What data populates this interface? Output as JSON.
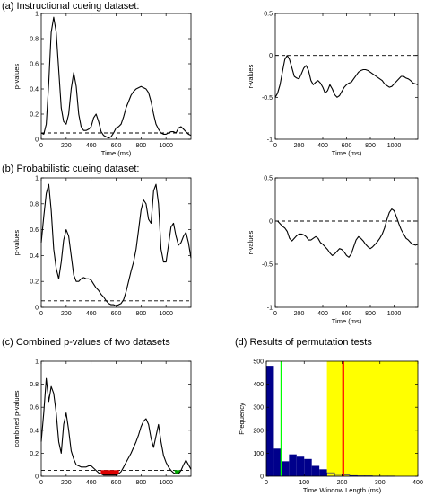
{
  "panel_titles": {
    "a": "(a)  Instructional cueing dataset:",
    "b": "(b)  Probabilistic cueing dataset:",
    "c": "(c)  Combined p-values of two datasets",
    "d": "(d)  Results of permutation tests"
  },
  "chart_data": [
    {
      "id": "a-left",
      "type": "line",
      "xlabel": "Time (ms)",
      "ylabel": "p-values",
      "xlim": [
        0,
        1200
      ],
      "ylim": [
        0,
        1
      ],
      "xticks": [
        0,
        200,
        400,
        600,
        800,
        1000
      ],
      "yticks": [
        0,
        0.2,
        0.4,
        0.6,
        0.8,
        1
      ],
      "ytick_labels": [
        "0",
        "0.2",
        "0.4",
        "0.6",
        "0.8",
        "1"
      ],
      "threshold": 0.05,
      "series": [
        {
          "x": [
            0,
            20,
            40,
            60,
            80,
            100,
            120,
            140,
            160,
            180,
            200,
            220,
            240,
            260,
            280,
            300,
            320,
            340,
            360,
            380,
            400,
            420,
            440,
            460,
            480,
            500,
            520,
            540,
            560,
            580,
            600,
            620,
            640,
            660,
            680,
            700,
            720,
            740,
            760,
            780,
            800,
            820,
            840,
            860,
            880,
            900,
            920,
            940,
            960,
            980,
            1000,
            1020,
            1040,
            1060,
            1080,
            1100,
            1120,
            1140,
            1160,
            1180,
            1200
          ],
          "y": [
            0.05,
            0.04,
            0.12,
            0.45,
            0.85,
            0.97,
            0.85,
            0.55,
            0.25,
            0.14,
            0.12,
            0.2,
            0.4,
            0.53,
            0.42,
            0.2,
            0.1,
            0.07,
            0.07,
            0.08,
            0.1,
            0.17,
            0.2,
            0.14,
            0.06,
            0.03,
            0.02,
            0.01,
            0.02,
            0.05,
            0.09,
            0.1,
            0.12,
            0.18,
            0.25,
            0.3,
            0.35,
            0.38,
            0.4,
            0.41,
            0.42,
            0.41,
            0.4,
            0.37,
            0.3,
            0.2,
            0.12,
            0.08,
            0.05,
            0.04,
            0.04,
            0.05,
            0.06,
            0.06,
            0.05,
            0.09,
            0.1,
            0.08,
            0.06,
            0.04,
            0.03
          ]
        }
      ]
    },
    {
      "id": "a-right",
      "type": "line",
      "xlabel": "Time (ms)",
      "ylabel": "r-values",
      "xlim": [
        0,
        1200
      ],
      "ylim": [
        -1,
        0.5
      ],
      "xticks": [
        0,
        200,
        400,
        600,
        800,
        1000
      ],
      "yticks": [
        -1,
        -0.5,
        0,
        0.5
      ],
      "ytick_labels": [
        "-1",
        "-0.5",
        "0",
        "0.5"
      ],
      "threshold": 0,
      "series": [
        {
          "x": [
            0,
            20,
            40,
            60,
            80,
            100,
            120,
            140,
            160,
            180,
            200,
            220,
            240,
            260,
            280,
            300,
            320,
            340,
            360,
            380,
            400,
            420,
            440,
            460,
            480,
            500,
            520,
            540,
            560,
            580,
            600,
            620,
            640,
            660,
            680,
            700,
            720,
            740,
            760,
            780,
            800,
            820,
            840,
            860,
            880,
            900,
            920,
            940,
            960,
            980,
            1000,
            1020,
            1040,
            1060,
            1080,
            1100,
            1120,
            1140,
            1160,
            1180,
            1200
          ],
          "y": [
            -0.5,
            -0.45,
            -0.35,
            -0.2,
            -0.05,
            0.0,
            -0.05,
            -0.15,
            -0.25,
            -0.27,
            -0.28,
            -0.22,
            -0.15,
            -0.12,
            -0.18,
            -0.3,
            -0.35,
            -0.32,
            -0.3,
            -0.33,
            -0.38,
            -0.45,
            -0.42,
            -0.35,
            -0.4,
            -0.47,
            -0.5,
            -0.48,
            -0.43,
            -0.38,
            -0.35,
            -0.33,
            -0.32,
            -0.28,
            -0.24,
            -0.2,
            -0.18,
            -0.17,
            -0.17,
            -0.18,
            -0.2,
            -0.22,
            -0.24,
            -0.26,
            -0.28,
            -0.3,
            -0.34,
            -0.36,
            -0.38,
            -0.37,
            -0.34,
            -0.31,
            -0.28,
            -0.25,
            -0.25,
            -0.27,
            -0.28,
            -0.3,
            -0.33,
            -0.34,
            -0.35
          ]
        }
      ]
    },
    {
      "id": "b-left",
      "type": "line",
      "xlabel": "",
      "ylabel": "p-values",
      "xlim": [
        0,
        1200
      ],
      "ylim": [
        0,
        1
      ],
      "xticks": [
        0,
        200,
        400,
        600,
        800,
        1000
      ],
      "yticks": [
        0,
        0.2,
        0.4,
        0.6,
        0.8,
        1
      ],
      "ytick_labels": [
        "0",
        "0.2",
        "0.4",
        "0.6",
        "0.8",
        "1"
      ],
      "threshold": 0.05,
      "series": [
        {
          "x": [
            0,
            20,
            40,
            60,
            80,
            100,
            120,
            140,
            160,
            180,
            200,
            220,
            240,
            260,
            280,
            300,
            320,
            340,
            360,
            380,
            400,
            420,
            440,
            460,
            480,
            500,
            520,
            540,
            560,
            580,
            600,
            620,
            640,
            660,
            680,
            700,
            720,
            740,
            760,
            780,
            800,
            820,
            840,
            860,
            880,
            900,
            920,
            940,
            960,
            980,
            1000,
            1020,
            1040,
            1060,
            1080,
            1100,
            1120,
            1140,
            1160,
            1180,
            1200
          ],
          "y": [
            0.5,
            0.7,
            0.88,
            0.95,
            0.75,
            0.45,
            0.3,
            0.22,
            0.35,
            0.52,
            0.6,
            0.55,
            0.4,
            0.25,
            0.2,
            0.2,
            0.22,
            0.23,
            0.22,
            0.22,
            0.21,
            0.18,
            0.15,
            0.13,
            0.1,
            0.08,
            0.05,
            0.03,
            0.02,
            0.02,
            0.01,
            0.02,
            0.03,
            0.06,
            0.12,
            0.2,
            0.28,
            0.35,
            0.45,
            0.6,
            0.75,
            0.83,
            0.8,
            0.68,
            0.65,
            0.9,
            0.95,
            0.8,
            0.45,
            0.35,
            0.35,
            0.48,
            0.62,
            0.65,
            0.55,
            0.48,
            0.5,
            0.55,
            0.58,
            0.5,
            0.38
          ]
        }
      ]
    },
    {
      "id": "b-right",
      "type": "line",
      "xlabel": "Time (ms)",
      "ylabel": "r-values",
      "xlim": [
        0,
        1200
      ],
      "ylim": [
        -1,
        0.5
      ],
      "xticks": [
        0,
        200,
        400,
        600,
        800,
        1000
      ],
      "yticks": [
        -1,
        -0.5,
        0,
        0.5
      ],
      "ytick_labels": [
        "-1",
        "-0.5",
        "0",
        "0.5"
      ],
      "threshold": 0,
      "series": [
        {
          "x": [
            0,
            20,
            40,
            60,
            80,
            100,
            120,
            140,
            160,
            180,
            200,
            220,
            240,
            260,
            280,
            300,
            320,
            340,
            360,
            380,
            400,
            420,
            440,
            460,
            480,
            500,
            520,
            540,
            560,
            580,
            600,
            620,
            640,
            660,
            680,
            700,
            720,
            740,
            760,
            780,
            800,
            820,
            840,
            860,
            880,
            900,
            920,
            940,
            960,
            980,
            1000,
            1020,
            1040,
            1060,
            1080,
            1100,
            1120,
            1140,
            1160,
            1180,
            1200
          ],
          "y": [
            0.0,
            0.0,
            -0.03,
            -0.06,
            -0.08,
            -0.12,
            -0.2,
            -0.23,
            -0.2,
            -0.17,
            -0.15,
            -0.15,
            -0.16,
            -0.18,
            -0.22,
            -0.22,
            -0.2,
            -0.18,
            -0.2,
            -0.25,
            -0.27,
            -0.3,
            -0.33,
            -0.37,
            -0.4,
            -0.38,
            -0.35,
            -0.32,
            -0.33,
            -0.36,
            -0.4,
            -0.42,
            -0.38,
            -0.3,
            -0.22,
            -0.18,
            -0.2,
            -0.23,
            -0.27,
            -0.3,
            -0.32,
            -0.3,
            -0.27,
            -0.24,
            -0.2,
            -0.15,
            -0.08,
            0.02,
            0.1,
            0.14,
            0.12,
            0.05,
            -0.03,
            -0.1,
            -0.15,
            -0.2,
            -0.22,
            -0.25,
            -0.27,
            -0.28,
            -0.27
          ]
        }
      ]
    },
    {
      "id": "c-left",
      "type": "line",
      "xlabel": "",
      "ylabel": "combined p-values",
      "xlim": [
        0,
        1200
      ],
      "ylim": [
        0,
        1
      ],
      "xticks": [
        0,
        200,
        400,
        600,
        800,
        1000
      ],
      "yticks": [
        0,
        0.2,
        0.4,
        0.6,
        0.8,
        1
      ],
      "ytick_labels": [
        "0",
        "0.2",
        "0.4",
        "0.6",
        "0.8",
        "1"
      ],
      "threshold": 0.05,
      "highlights": [
        {
          "from": 480,
          "to": 620,
          "color": "#dd0000"
        },
        {
          "from": 1070,
          "to": 1110,
          "color": "#00aa00"
        }
      ],
      "series": [
        {
          "x": [
            0,
            20,
            40,
            60,
            80,
            100,
            120,
            140,
            160,
            180,
            200,
            220,
            240,
            260,
            280,
            300,
            320,
            340,
            360,
            380,
            400,
            420,
            440,
            460,
            480,
            500,
            520,
            540,
            560,
            580,
            600,
            620,
            640,
            660,
            680,
            700,
            720,
            740,
            760,
            780,
            800,
            820,
            840,
            860,
            880,
            900,
            920,
            940,
            960,
            980,
            1000,
            1020,
            1040,
            1060,
            1080,
            1100,
            1120,
            1140,
            1160,
            1180,
            1200
          ],
          "y": [
            0.3,
            0.55,
            0.85,
            0.65,
            0.78,
            0.72,
            0.55,
            0.3,
            0.2,
            0.45,
            0.55,
            0.4,
            0.22,
            0.15,
            0.1,
            0.09,
            0.08,
            0.08,
            0.08,
            0.09,
            0.09,
            0.07,
            0.05,
            0.03,
            0.02,
            0.01,
            0.01,
            0.01,
            0.01,
            0.01,
            0.01,
            0.02,
            0.04,
            0.08,
            0.12,
            0.16,
            0.2,
            0.25,
            0.3,
            0.36,
            0.43,
            0.48,
            0.5,
            0.45,
            0.33,
            0.25,
            0.35,
            0.45,
            0.3,
            0.18,
            0.12,
            0.08,
            0.05,
            0.03,
            0.02,
            0.02,
            0.05,
            0.1,
            0.14,
            0.1,
            0.06
          ]
        }
      ]
    },
    {
      "id": "d-right",
      "type": "bar",
      "xlabel": "Time Window Length (ms)",
      "ylabel": "Frequency",
      "xlim": [
        0,
        400
      ],
      "ylim": [
        0,
        500
      ],
      "xticks": [
        0,
        100,
        200,
        300,
        400
      ],
      "yticks": [
        0,
        100,
        200,
        300,
        400,
        500
      ],
      "ytick_labels": [
        "0",
        "100",
        "200",
        "300",
        "400",
        "500"
      ],
      "shaded_region": {
        "from": 160,
        "to": 400,
        "color": "#ffff00"
      },
      "vlines": [
        {
          "x": 40,
          "color": "#00ff00"
        },
        {
          "x": 203,
          "color": "#ff0000"
        }
      ],
      "bin_width": 20,
      "bins": [
        0,
        20,
        40,
        60,
        80,
        100,
        120,
        140,
        160,
        180,
        200,
        220,
        240,
        260,
        280,
        300,
        320,
        340,
        360,
        380
      ],
      "values": [
        480,
        120,
        65,
        95,
        85,
        75,
        45,
        30,
        15,
        8,
        5,
        3,
        2,
        2,
        1,
        1,
        1,
        0,
        0,
        0
      ]
    }
  ]
}
